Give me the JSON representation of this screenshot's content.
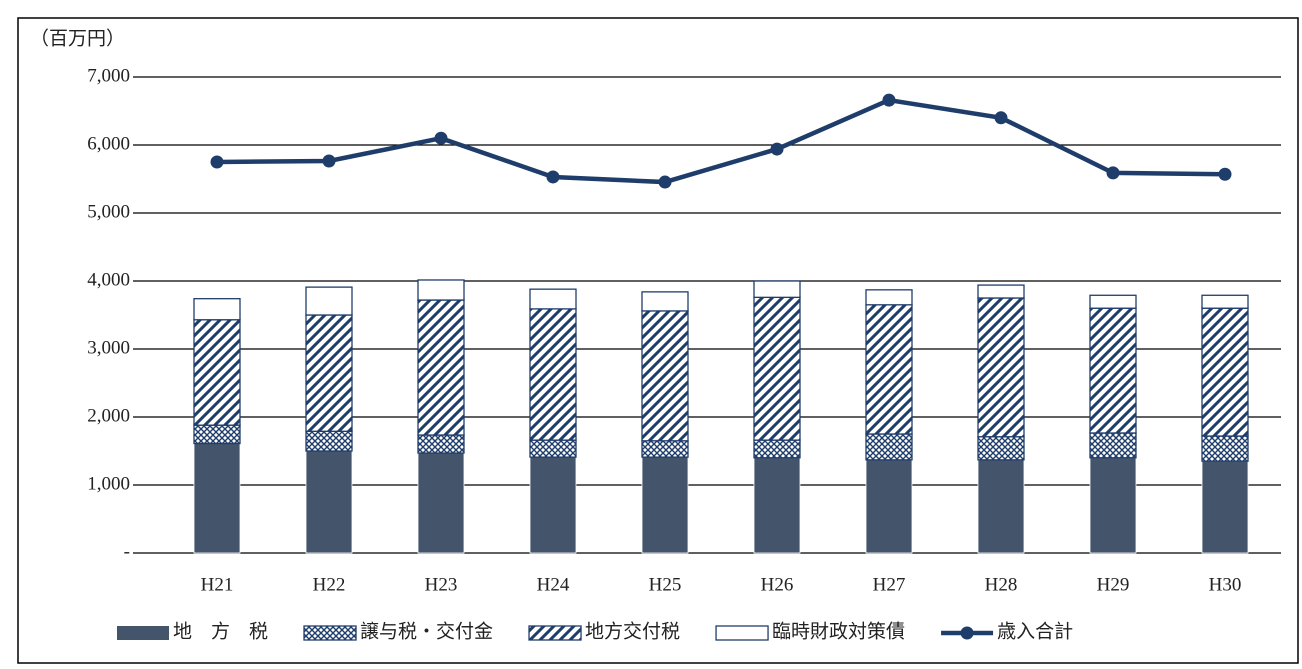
{
  "chart_data": {
    "type": "bar-line",
    "y_label": "（百万円）",
    "categories": [
      "H21",
      "H22",
      "H23",
      "H24",
      "H25",
      "H26",
      "H27",
      "H28",
      "H29",
      "H30"
    ],
    "series": [
      {
        "name": "地　方　税",
        "color": "#44546a",
        "fill": "solid",
        "values": [
          1610,
          1500,
          1470,
          1410,
          1410,
          1400,
          1370,
          1370,
          1400,
          1350
        ]
      },
      {
        "name": "譲与税・交付金",
        "color": "#1f3d6b",
        "fill": "crosshatch",
        "values": [
          270,
          290,
          265,
          250,
          240,
          260,
          380,
          340,
          365,
          370
        ]
      },
      {
        "name": "地方交付税",
        "color": "#1f3d6b",
        "fill": "diagonal",
        "values": [
          1550,
          1710,
          1985,
          1930,
          1910,
          2100,
          1900,
          2040,
          1835,
          1880
        ]
      },
      {
        "name": "臨時財政対策債",
        "color": "#1f3d6b",
        "fill": "outline",
        "values": [
          310,
          410,
          295,
          290,
          280,
          240,
          220,
          190,
          190,
          190
        ]
      },
      {
        "name": "歳入合計",
        "color": "#1f3d6b",
        "type": "line",
        "values": [
          5750,
          5765,
          6100,
          5530,
          5455,
          5940,
          6660,
          6400,
          5590,
          5570
        ]
      }
    ],
    "ylim": [
      0,
      7000
    ],
    "yticks": [
      {
        "value": 0,
        "label": "-"
      },
      {
        "value": 1000,
        "label": "1,000"
      },
      {
        "value": 2000,
        "label": "2,000"
      },
      {
        "value": 3000,
        "label": "3,000"
      },
      {
        "value": 4000,
        "label": "4,000"
      },
      {
        "value": 5000,
        "label": "5,000"
      },
      {
        "value": 6000,
        "label": "6,000"
      },
      {
        "value": 7000,
        "label": "7,000"
      }
    ],
    "grid": true
  }
}
